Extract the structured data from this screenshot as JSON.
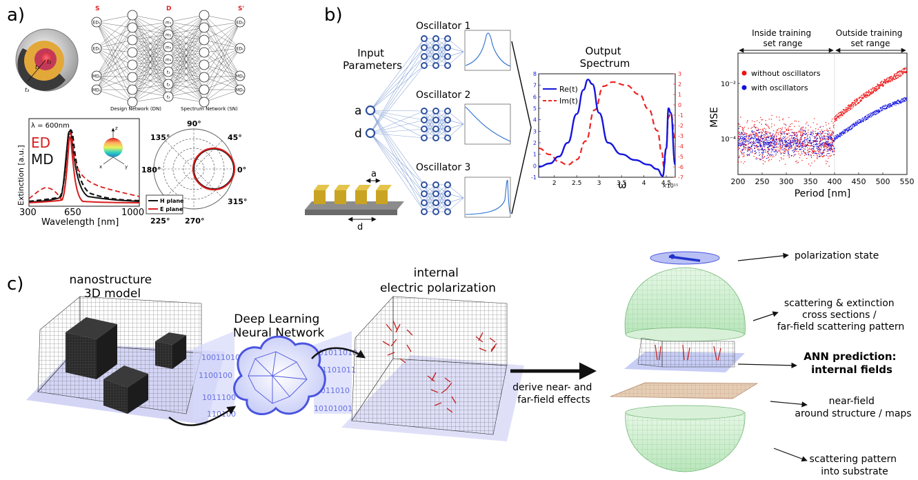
{
  "panel_labels": {
    "a": "a)",
    "b": "b)",
    "c": "c)"
  },
  "panel_a": {
    "network": {
      "layer_labels": [
        "S",
        "D",
        "S'"
      ],
      "input_nodes": [
        "ED₁",
        "EDₙ",
        "MD₁",
        "MDₙ"
      ],
      "design_nodes": [
        "m₁",
        "m₂",
        "m₃",
        "m₄",
        "t₁",
        "t₂",
        "t₃"
      ],
      "output_nodes": [
        "ED₁",
        "EDₙ",
        "MD₁",
        "MDₙ"
      ],
      "design_caption": "Design Network (DN)",
      "spectrum_caption": "Spectrum Network (SN)"
    },
    "sphere_labels": [
      "t₁",
      "t₂",
      "t₃"
    ],
    "spectrum_plot": {
      "wavelength_note": "λ = 600nm",
      "ed_label": "ED",
      "md_label": "MD",
      "ylabel": "Extinction [a.u.]",
      "xlabel": "Wavelength [nm]",
      "xticks": [
        "300",
        "650",
        "1000"
      ],
      "axes_labels": [
        "z",
        "x",
        "y"
      ]
    },
    "polar_plot": {
      "angle_labels": [
        "90°",
        "45°",
        "135°",
        "180°",
        "0°",
        "225°",
        "315°",
        "270°"
      ],
      "legend": [
        "H plane",
        "E plane"
      ]
    }
  },
  "panel_b": {
    "input_label": "Input\nParameters",
    "inputs": [
      "a",
      "d"
    ],
    "oscillators": [
      "Oscillator 1",
      "Oscillator 2",
      "Oscillator 3"
    ],
    "grating_labels": [
      "a",
      "d"
    ],
    "output_title": "Output\nSpectrum",
    "output_chart": {
      "xlabel": "ω",
      "x_multiplier": "×10¹⁵",
      "xticks": [
        "2",
        "2.5",
        "3",
        "3.5",
        "4",
        "4.5"
      ],
      "yticks_left": [
        "-1",
        "0",
        "1",
        "2",
        "3",
        "4",
        "5",
        "6",
        "7",
        "8"
      ],
      "yticks_right": [
        "-7",
        "-6",
        "-5",
        "-4",
        "-3",
        "-2",
        "-1",
        "0",
        "1",
        "2",
        "3"
      ],
      "legend": [
        "Re(t)",
        "Im(t)"
      ],
      "colors": {
        "re": "#1515dd",
        "im": "#ee2222"
      }
    },
    "mse_chart": {
      "header_inside": "Inside training\nset range",
      "header_outside": "Outside training\nset range",
      "legend": [
        "without oscillators",
        "with oscillators"
      ],
      "ylabel": "MSE",
      "xlabel": "Period [nm]",
      "xticks": [
        "200",
        "250",
        "300",
        "350",
        "400",
        "450",
        "500",
        "550"
      ],
      "yticks": [
        "10⁻²",
        "10⁻⁴"
      ],
      "colors": {
        "without": "#ee1111",
        "with": "#1111dd"
      }
    }
  },
  "panel_c": {
    "model_title": "nanostructure\n3D model",
    "network_title": "Deep Learning\nNeural Network",
    "polarization_title": "internal\nelectric polarization",
    "derive_label": "derive near- and\nfar-field effects",
    "binary_strings": [
      "10011010",
      "1100100",
      "1011100",
      "101011010",
      "01101011",
      "1011010",
      "10101001",
      "110100"
    ],
    "annotations": [
      {
        "text": "polarization state",
        "bold": false
      },
      {
        "text": "scattering & extinction\ncross sections /\nfar-field scattering pattern",
        "bold": false
      },
      {
        "text": "ANN prediction:\ninternal fields",
        "bold": true
      },
      {
        "text": "near-field\naround structure / maps",
        "bold": false
      },
      {
        "text": "scattering pattern\ninto substrate",
        "bold": false
      }
    ]
  },
  "chart_data": [
    {
      "type": "line",
      "title": "Output\nSpectrum",
      "xlabel": "ω",
      "x_unit_multiplier": "×10¹⁵",
      "xlim": [
        1.65,
        4.7
      ],
      "ylim_left": [
        -1,
        8
      ],
      "ylim_right": [
        -7,
        3
      ],
      "series": [
        {
          "name": "Re(t)",
          "axis": "left",
          "x": [
            1.65,
            1.9,
            2.1,
            2.3,
            2.5,
            2.65,
            2.75,
            2.85,
            3.0,
            3.2,
            3.5,
            3.8,
            4.1,
            4.3,
            4.42,
            4.5,
            4.55,
            4.6,
            4.7
          ],
          "y": [
            -0.1,
            0.2,
            0.8,
            2.0,
            4.5,
            6.6,
            7.5,
            7.1,
            4.6,
            2.0,
            1.0,
            0.5,
            0.1,
            -0.3,
            -0.9,
            1.5,
            5.0,
            4.6,
            0.1
          ]
        },
        {
          "name": "Im(t)",
          "axis": "right",
          "x": [
            1.65,
            1.9,
            2.1,
            2.3,
            2.5,
            2.7,
            2.9,
            3.1,
            3.3,
            3.6,
            3.9,
            4.1,
            4.3,
            4.4,
            4.45,
            4.5,
            4.55,
            4.6,
            4.7
          ],
          "y": [
            -4.2,
            -4.8,
            -5.5,
            -5.8,
            -5.3,
            -3.5,
            -0.5,
            1.8,
            2.2,
            1.9,
            1.0,
            -0.4,
            -2.5,
            -4.6,
            -6.0,
            -4.0,
            -1.2,
            -0.8,
            -3.5
          ]
        }
      ]
    },
    {
      "type": "scatter",
      "xlabel": "Period [nm]",
      "ylabel": "MSE",
      "xlim": [
        200,
        550
      ],
      "ylim_log10": [
        -5.3,
        -0.9
      ],
      "series": [
        {
          "name": "without oscillators",
          "inside_range_log10_mean": -4.1,
          "inside_range_log10_spread": 0.7,
          "outside_range_log10": [
            [
              400,
              -3.3
            ],
            [
              450,
              -2.6
            ],
            [
              500,
              -2.0
            ],
            [
              550,
              -1.5
            ]
          ]
        },
        {
          "name": "with oscillators",
          "inside_range_log10_mean": -4.15,
          "inside_range_log10_spread": 0.45,
          "outside_range_log10": [
            [
              400,
              -4.0
            ],
            [
              450,
              -3.4
            ],
            [
              500,
              -2.9
            ],
            [
              550,
              -2.55
            ]
          ]
        }
      ]
    }
  ]
}
